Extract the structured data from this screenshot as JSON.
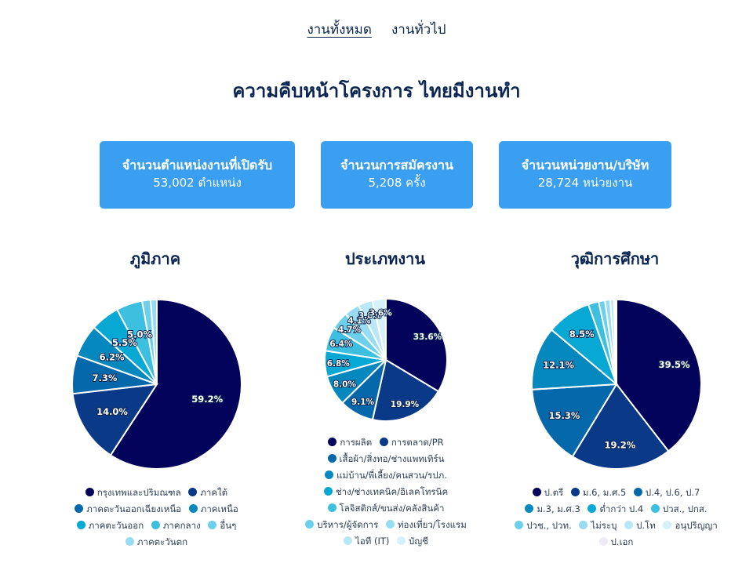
{
  "tabs": [
    {
      "label": "งานทั้งหมด",
      "active": true
    },
    {
      "label": "งานทั่วไป",
      "active": false
    }
  ],
  "page_title": "ความคืบหน้าโครงการ ไทยมีงานทำ",
  "stats": [
    {
      "label": "จำนวนตำแหน่งงานที่เปิดรับ",
      "value": "53,002 ตำแหน่ง"
    },
    {
      "label": "จำนวนการสมัครงาน",
      "value": "5,208 ครั้ง"
    },
    {
      "label": "จำนวนหน่วยงาน/บริษัท",
      "value": "28,724 หน่วยงาน"
    }
  ],
  "colors": {
    "stat_bg": "#3a9ff0",
    "title": "#0b2653",
    "palette": [
      "#03035c",
      "#0a3a87",
      "#0568aa",
      "#0488be",
      "#07a8d4",
      "#3dbfe0",
      "#6dd0ea",
      "#97dcf0",
      "#b9e7f5",
      "#d6f1fa",
      "#ecebf7"
    ]
  },
  "chart_data": [
    {
      "type": "pie",
      "title": "ภูมิภาค",
      "categories": [
        "กรุงเทพและปริมณฑล",
        "ภาคใต้",
        "ภาคตะวันออกเฉียงเหนือ",
        "ภาคเหนือ",
        "ภาคตะวันออก",
        "ภาคกลาง",
        "อื่นๆ",
        "ภาคตะวันตก"
      ],
      "values": [
        59.2,
        14.0,
        7.3,
        6.2,
        5.5,
        5.0,
        1.6,
        1.2
      ],
      "labels": [
        "59.2%",
        "14.0%",
        "7.3%",
        "6.2%",
        "5.5%",
        "5.0%",
        "",
        ""
      ],
      "legend": "bottom"
    },
    {
      "type": "pie",
      "title": "ประเภทงาน",
      "categories": [
        "การผลิต",
        "การตลาด/PR",
        "เสื้อผ้า/สิ่งทอ/ช่างแพทเทิร์น",
        "แม่บ้าน/พี่เลี้ยง/คนสวน/รปภ.",
        "ช่าง/ช่างเทคนิค/อิเลคโทรนิค",
        "โลจิสติกส์/ขนส่ง/คลังสินค้า",
        "บริหาร/ผู้จัดการ",
        "ท่องเที่ยว/โรงแรม",
        "ไอที (IT)",
        "บัญชี"
      ],
      "values": [
        33.6,
        19.9,
        9.1,
        8.0,
        6.8,
        6.4,
        4.7,
        4.1,
        3.8,
        3.6
      ],
      "labels": [
        "33.6%",
        "19.9%",
        "9.1%",
        "8.0%",
        "6.8%",
        "6.4%",
        "4.7%",
        "4.1%",
        "3.8%",
        "3.6%"
      ],
      "legend": "bottom"
    },
    {
      "type": "pie",
      "title": "วุฒิการศึกษา",
      "categories": [
        "ป.ตรี",
        "ม.6, ม.ศ.5",
        "ป.4, ป.6, ป.7",
        "ม.3, ม.ศ.3",
        "ต่ำกว่า ป.4",
        "ปวส., ปกส.",
        "ปวช., ปวท.",
        "ไม่ระบุ",
        "ป.โท",
        "อนุปริญญา",
        "ป.เอก"
      ],
      "values": [
        39.5,
        19.2,
        15.3,
        12.1,
        8.5,
        2.0,
        1.2,
        1.0,
        0.7,
        0.3,
        0.2
      ],
      "labels": [
        "39.5%",
        "19.2%",
        "15.3%",
        "12.1%",
        "8.5%",
        "",
        "",
        "",
        "",
        "",
        ""
      ],
      "legend": "bottom"
    }
  ]
}
